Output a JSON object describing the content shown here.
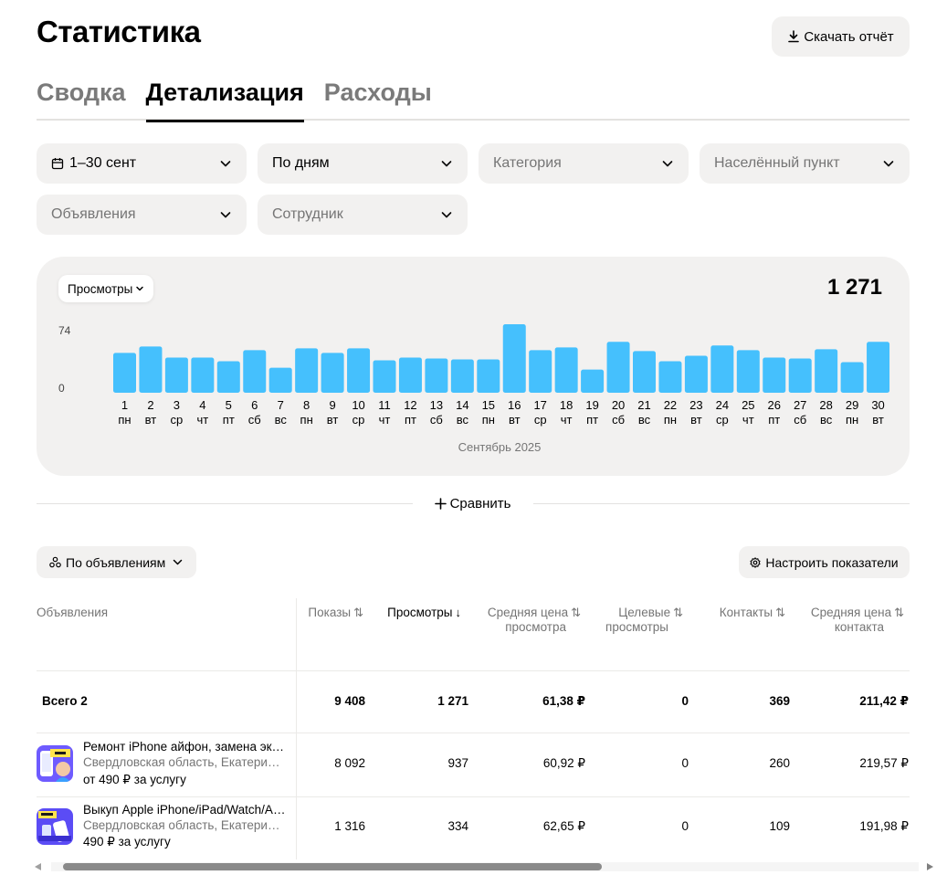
{
  "page": {
    "title": "Статистика",
    "download_label": "Скачать отчёт"
  },
  "tabs": [
    {
      "label": "Сводка",
      "active": false
    },
    {
      "label": "Детализация",
      "active": true
    },
    {
      "label": "Расходы",
      "active": false
    }
  ],
  "filters": {
    "period": "1–30 сент",
    "granularity": "По дням",
    "category_placeholder": "Категория",
    "locality_placeholder": "Населённый пункт",
    "ads_placeholder": "Объявления",
    "employee_placeholder": "Сотрудник"
  },
  "chart": {
    "metric_label": "Просмотры",
    "total": "1 271",
    "month_label": "Сентябрь 2025",
    "bar_color": "#45c0fd"
  },
  "chart_data": {
    "type": "bar",
    "ylim": [
      0,
      74
    ],
    "y_ticks": [
      "74",
      "0"
    ],
    "categories": [
      "1",
      "2",
      "3",
      "4",
      "5",
      "6",
      "7",
      "8",
      "9",
      "10",
      "11",
      "12",
      "13",
      "14",
      "15",
      "16",
      "17",
      "18",
      "19",
      "20",
      "21",
      "22",
      "23",
      "24",
      "25",
      "26",
      "27",
      "28",
      "29",
      "30"
    ],
    "weekdays": [
      "пн",
      "вт",
      "ср",
      "чт",
      "пт",
      "сб",
      "вс",
      "пн",
      "вт",
      "ср",
      "чт",
      "пт",
      "сб",
      "вс",
      "пн",
      "вт",
      "ср",
      "чт",
      "пт",
      "сб",
      "вс",
      "пн",
      "вт",
      "ср",
      "чт",
      "пт",
      "сб",
      "вс",
      "пн",
      "вт"
    ],
    "values": [
      43,
      50,
      38,
      38,
      34,
      46,
      27,
      48,
      43,
      48,
      35,
      38,
      37,
      36,
      36,
      74,
      46,
      49,
      25,
      55,
      45,
      34,
      40,
      51,
      46,
      38,
      37,
      47,
      33,
      55
    ]
  },
  "compare_label": "Сравнить",
  "grouping_label": "По объявлениям",
  "settings_label": "Настроить показатели",
  "table": {
    "first_header": "Объявления",
    "columns": [
      {
        "line1": "Показы",
        "line2": "",
        "arrow": "⇅",
        "sorted": false
      },
      {
        "line1": "Просмотры",
        "line2": "",
        "arrow": "↓",
        "sorted": true
      },
      {
        "line1": "Средняя цена",
        "line2": "просмотра",
        "arrow": "⇅",
        "sorted": false
      },
      {
        "line1": "Целевые",
        "line2": "просмотры",
        "arrow": "⇅",
        "sorted": false
      },
      {
        "line1": "Контакты",
        "line2": "",
        "arrow": "⇅",
        "sorted": false
      },
      {
        "line1": "Средняя цена",
        "line2": "контакта",
        "arrow": "⇅",
        "sorted": false
      }
    ],
    "total_row": {
      "label": "Всего 2",
      "values": [
        "9 408",
        "1 271",
        "61,38 ₽",
        "0",
        "369",
        "211,42 ₽"
      ]
    },
    "rows": [
      {
        "title": "Ремонт iPhone айфон, замена экрана",
        "region": "Свердловская область, Екатеринбург",
        "price": "от 490 ₽ за услугу",
        "values": [
          "8 092",
          "937",
          "60,92 ₽",
          "0",
          "260",
          "219,57 ₽"
        ]
      },
      {
        "title": "Выкуп Apple iPhone/iPad/Watch/AirPods",
        "region": "Свердловская область, Екатеринбург",
        "price": "490 ₽ за услугу",
        "values": [
          "1 316",
          "334",
          "62,65 ₽",
          "0",
          "109",
          "191,98 ₽"
        ]
      }
    ]
  }
}
